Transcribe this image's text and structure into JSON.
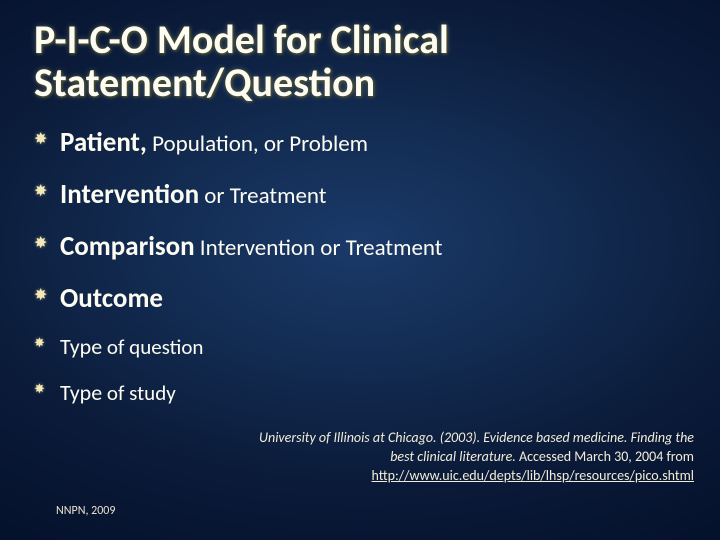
{
  "slide": {
    "background": {
      "gradient_center": "#1a3a6a",
      "gradient_mid": "#122a4f",
      "gradient_outer": "#0a1a38",
      "gradient_edge": "#04102a"
    },
    "title": {
      "text": "P-I-C-O Model for Clinical Statement/Question",
      "color": "#fdfcf3",
      "fontsize_pt": 40,
      "weight": 700
    },
    "bullets": [
      {
        "lead": "P",
        "lead_rest": "atient,",
        "rest": " Population, or Problem",
        "level": "main"
      },
      {
        "lead": "I",
        "lead_rest": "ntervention",
        "rest": " or Treatment",
        "level": "main"
      },
      {
        "lead": "C",
        "lead_rest": "omparison",
        "rest": " Intervention or Treatment",
        "level": "main"
      },
      {
        "lead": "O",
        "lead_rest": "utcome",
        "rest": "",
        "level": "main"
      },
      {
        "lead": "Type",
        "lead_rest": "",
        "rest": " of question",
        "level": "mid"
      },
      {
        "lead": "Type",
        "lead_rest": "",
        "rest": " of study",
        "level": "mid"
      }
    ],
    "bullet_style": {
      "marker_color": "#f2e8b8",
      "text_color": "#fdfcf3",
      "lead_fontsize_pt": 27,
      "rest_fontsize_pt": 23,
      "mid_lead_fontsize_pt": 22,
      "mid_rest_fontsize_pt": 21
    },
    "citation": {
      "source": "University of Illinois at Chicago. (2003). ",
      "title_italic": "Evidence based medicine. Finding the best clinical literature.",
      "accessed": " Accessed March 30, 2004 from",
      "url": "http://www.uic.edu/depts/lib/lhsp/resources/pico.shtml",
      "color": "#f2ecd8",
      "fontsize_pt": 14
    },
    "footer": {
      "text": "NNPN, 2009",
      "color": "#e8e2cc",
      "fontsize_pt": 12
    }
  }
}
